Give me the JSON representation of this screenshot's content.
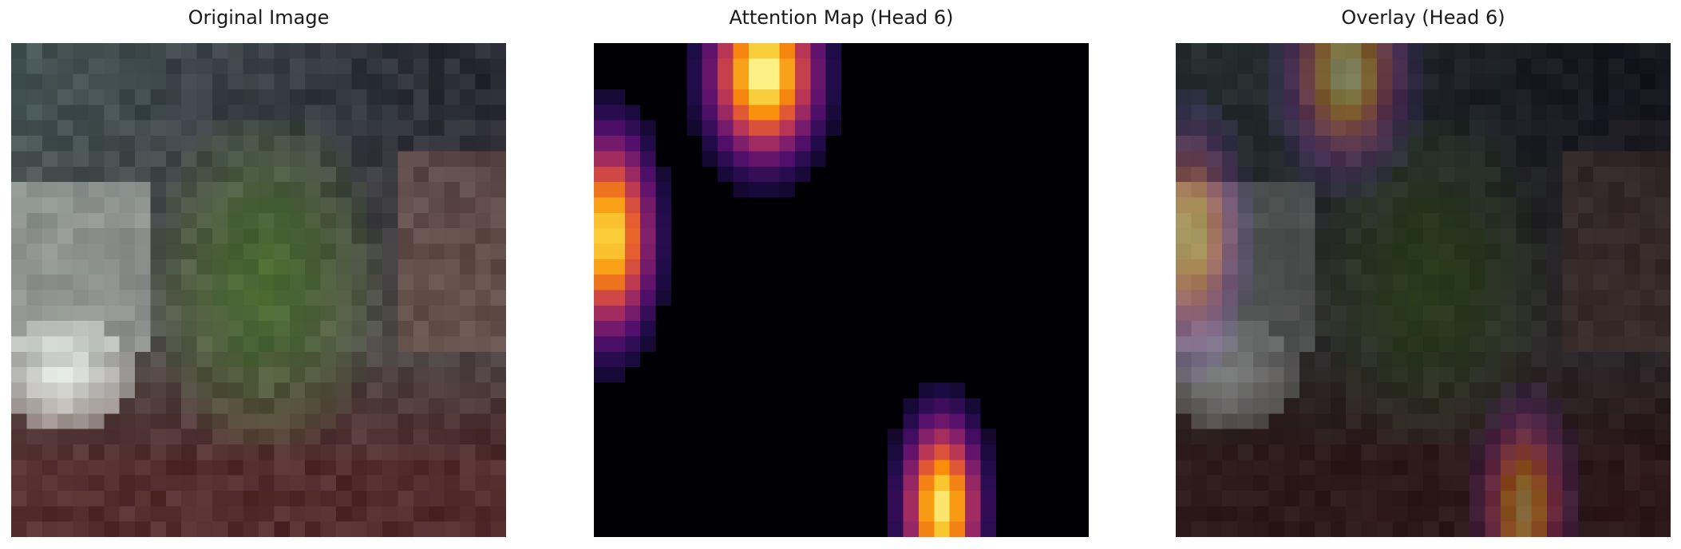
{
  "figure": {
    "panels": [
      {
        "title": "Original Image"
      },
      {
        "title": "Attention Map (Head 6)"
      },
      {
        "title": "Overlay (Head 6)"
      }
    ]
  },
  "attention_map": {
    "colormap": "inferno",
    "grid": [
      32,
      32
    ],
    "peaks": [
      {
        "label": "top-center",
        "col": 10.5,
        "row": 1.5
      },
      {
        "label": "left-edge",
        "col": 0.5,
        "row": 12.0
      },
      {
        "label": "bottom-right",
        "col": 22.0,
        "row": 29.5
      }
    ]
  }
}
